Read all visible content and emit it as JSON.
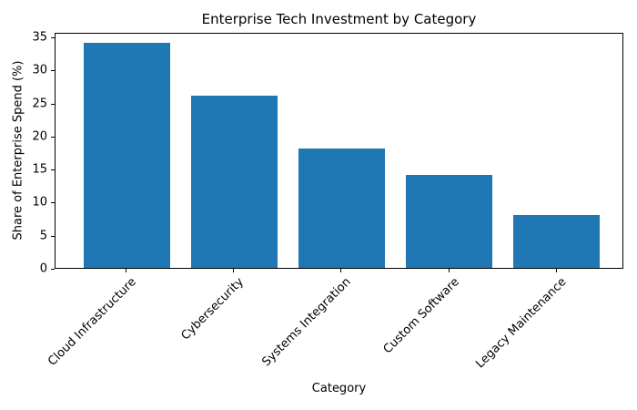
{
  "chart_data": {
    "type": "bar",
    "title": "Enterprise Tech Investment by Category",
    "xlabel": "Category",
    "ylabel": "Share of Enterprise Spend (%)",
    "categories": [
      "Cloud Infrastructure",
      "Cybersecurity",
      "Systems Integration",
      "Custom Software",
      "Legacy Maintenance"
    ],
    "values": [
      34,
      26,
      18,
      14,
      8
    ],
    "ylim": [
      0,
      35.7
    ],
    "yticks": [
      "0",
      "5",
      "10",
      "15",
      "20",
      "25",
      "30",
      "35"
    ],
    "bar_color": "#1f77b4",
    "grid": false,
    "legend": null
  }
}
